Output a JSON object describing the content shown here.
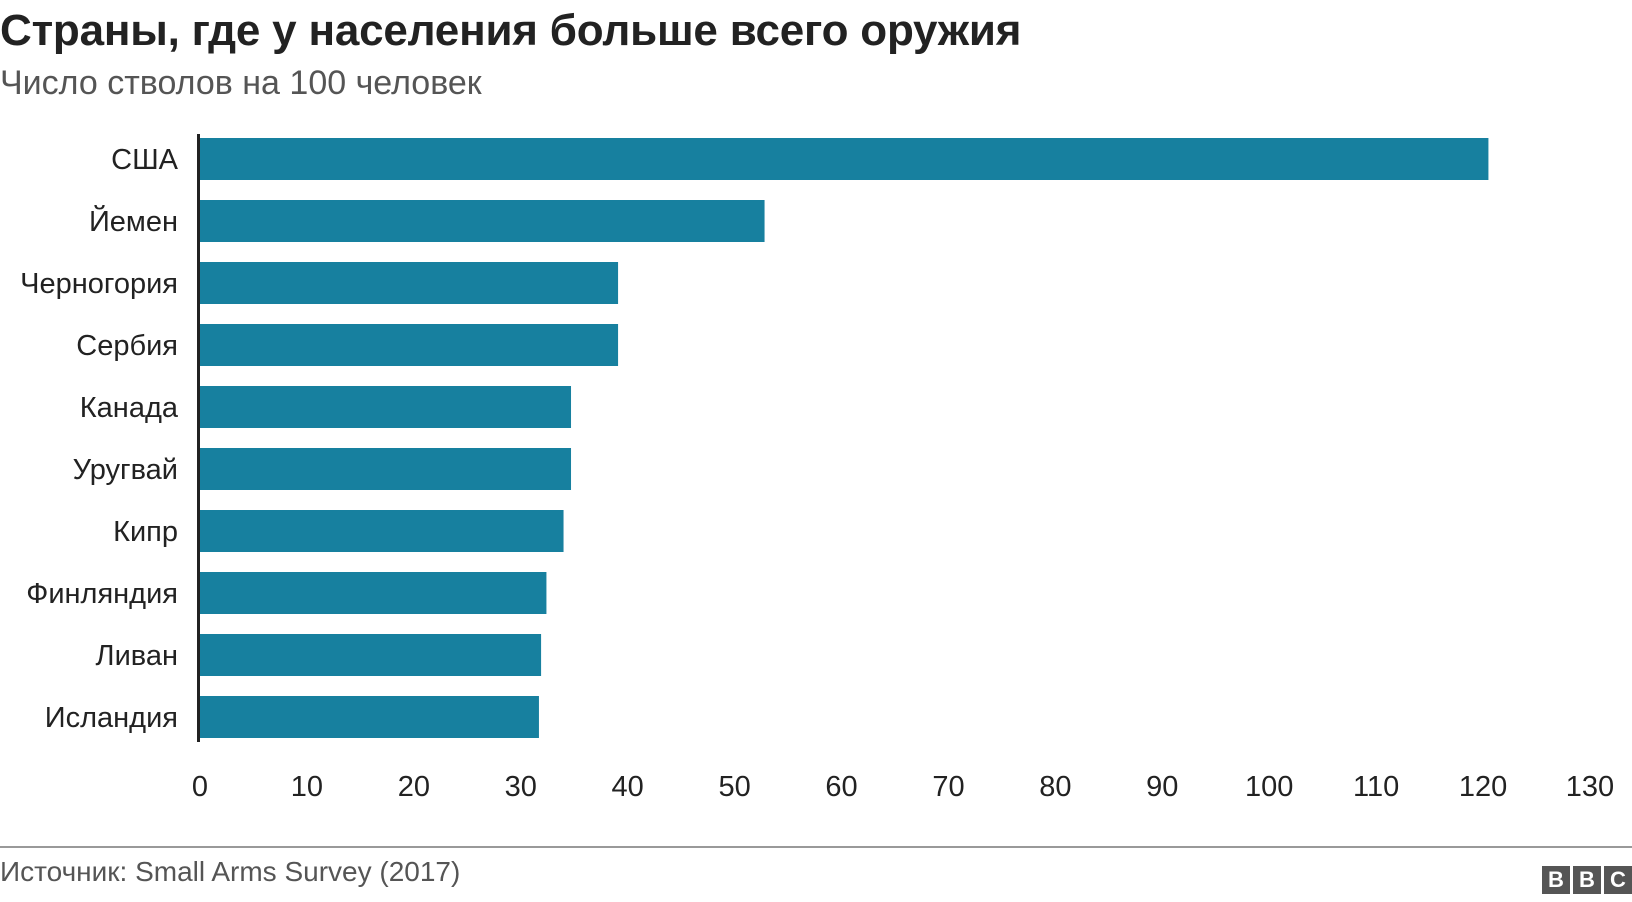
{
  "header": {
    "title": "Страны, где у населения больше всего оружия",
    "subtitle": "Число стволов на 100 человек"
  },
  "footer": {
    "source": "Источник: Small Arms Survey (2017)",
    "logo_letters": [
      "B",
      "B",
      "C"
    ]
  },
  "colors": {
    "bar": "#17809f",
    "axis": "#222222",
    "text": "#222222"
  },
  "chart_data": {
    "type": "bar",
    "orientation": "horizontal",
    "title": "Страны, где у населения больше всего оружия",
    "subtitle": "Число стволов на 100 человек",
    "categories": [
      "США",
      "Йемен",
      "Черногория",
      "Сербия",
      "Канада",
      "Уругвай",
      "Кипр",
      "Финляндия",
      "Ливан",
      "Исландия"
    ],
    "values": [
      120.5,
      52.8,
      39.1,
      39.1,
      34.7,
      34.7,
      34.0,
      32.4,
      31.9,
      31.7
    ],
    "xlim": [
      0,
      130
    ],
    "xticks": [
      0,
      10,
      20,
      30,
      40,
      50,
      60,
      70,
      80,
      90,
      100,
      110,
      120,
      130
    ],
    "grid": false,
    "legend": "none"
  }
}
